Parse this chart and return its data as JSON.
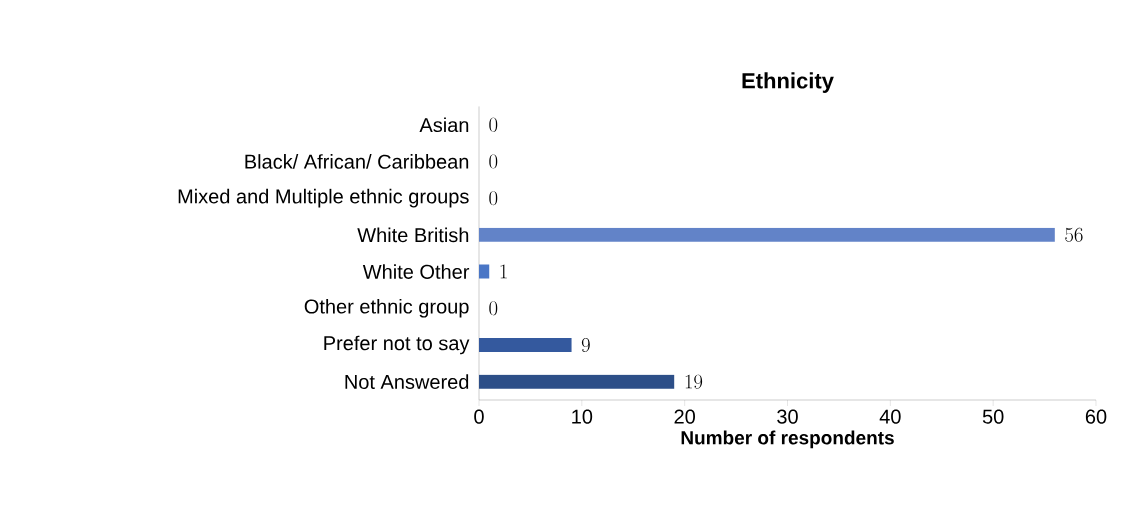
{
  "chart_data": {
    "type": "bar",
    "orientation": "horizontal",
    "title": "Ethnicity",
    "xlabel": "Number of respondents",
    "categories": [
      "Asian",
      "Black/ African/ Caribbean",
      "Mixed and Multiple ethnic groups",
      "White British",
      "White Other",
      "Other ethnic group",
      "Prefer not to say",
      "Not Answered"
    ],
    "values": [
      0,
      0,
      0,
      56,
      1,
      0,
      9,
      19
    ],
    "colors": [
      "#6283c8",
      "#6283c8",
      "#6283c8",
      "#6283c8",
      "#4a76c6",
      "#3a63ad",
      "#34599e",
      "#2d4f88"
    ],
    "xlim": [
      0,
      60
    ],
    "xticks": [
      0,
      10,
      20,
      30,
      40,
      50,
      60
    ],
    "data_labels": true
  }
}
